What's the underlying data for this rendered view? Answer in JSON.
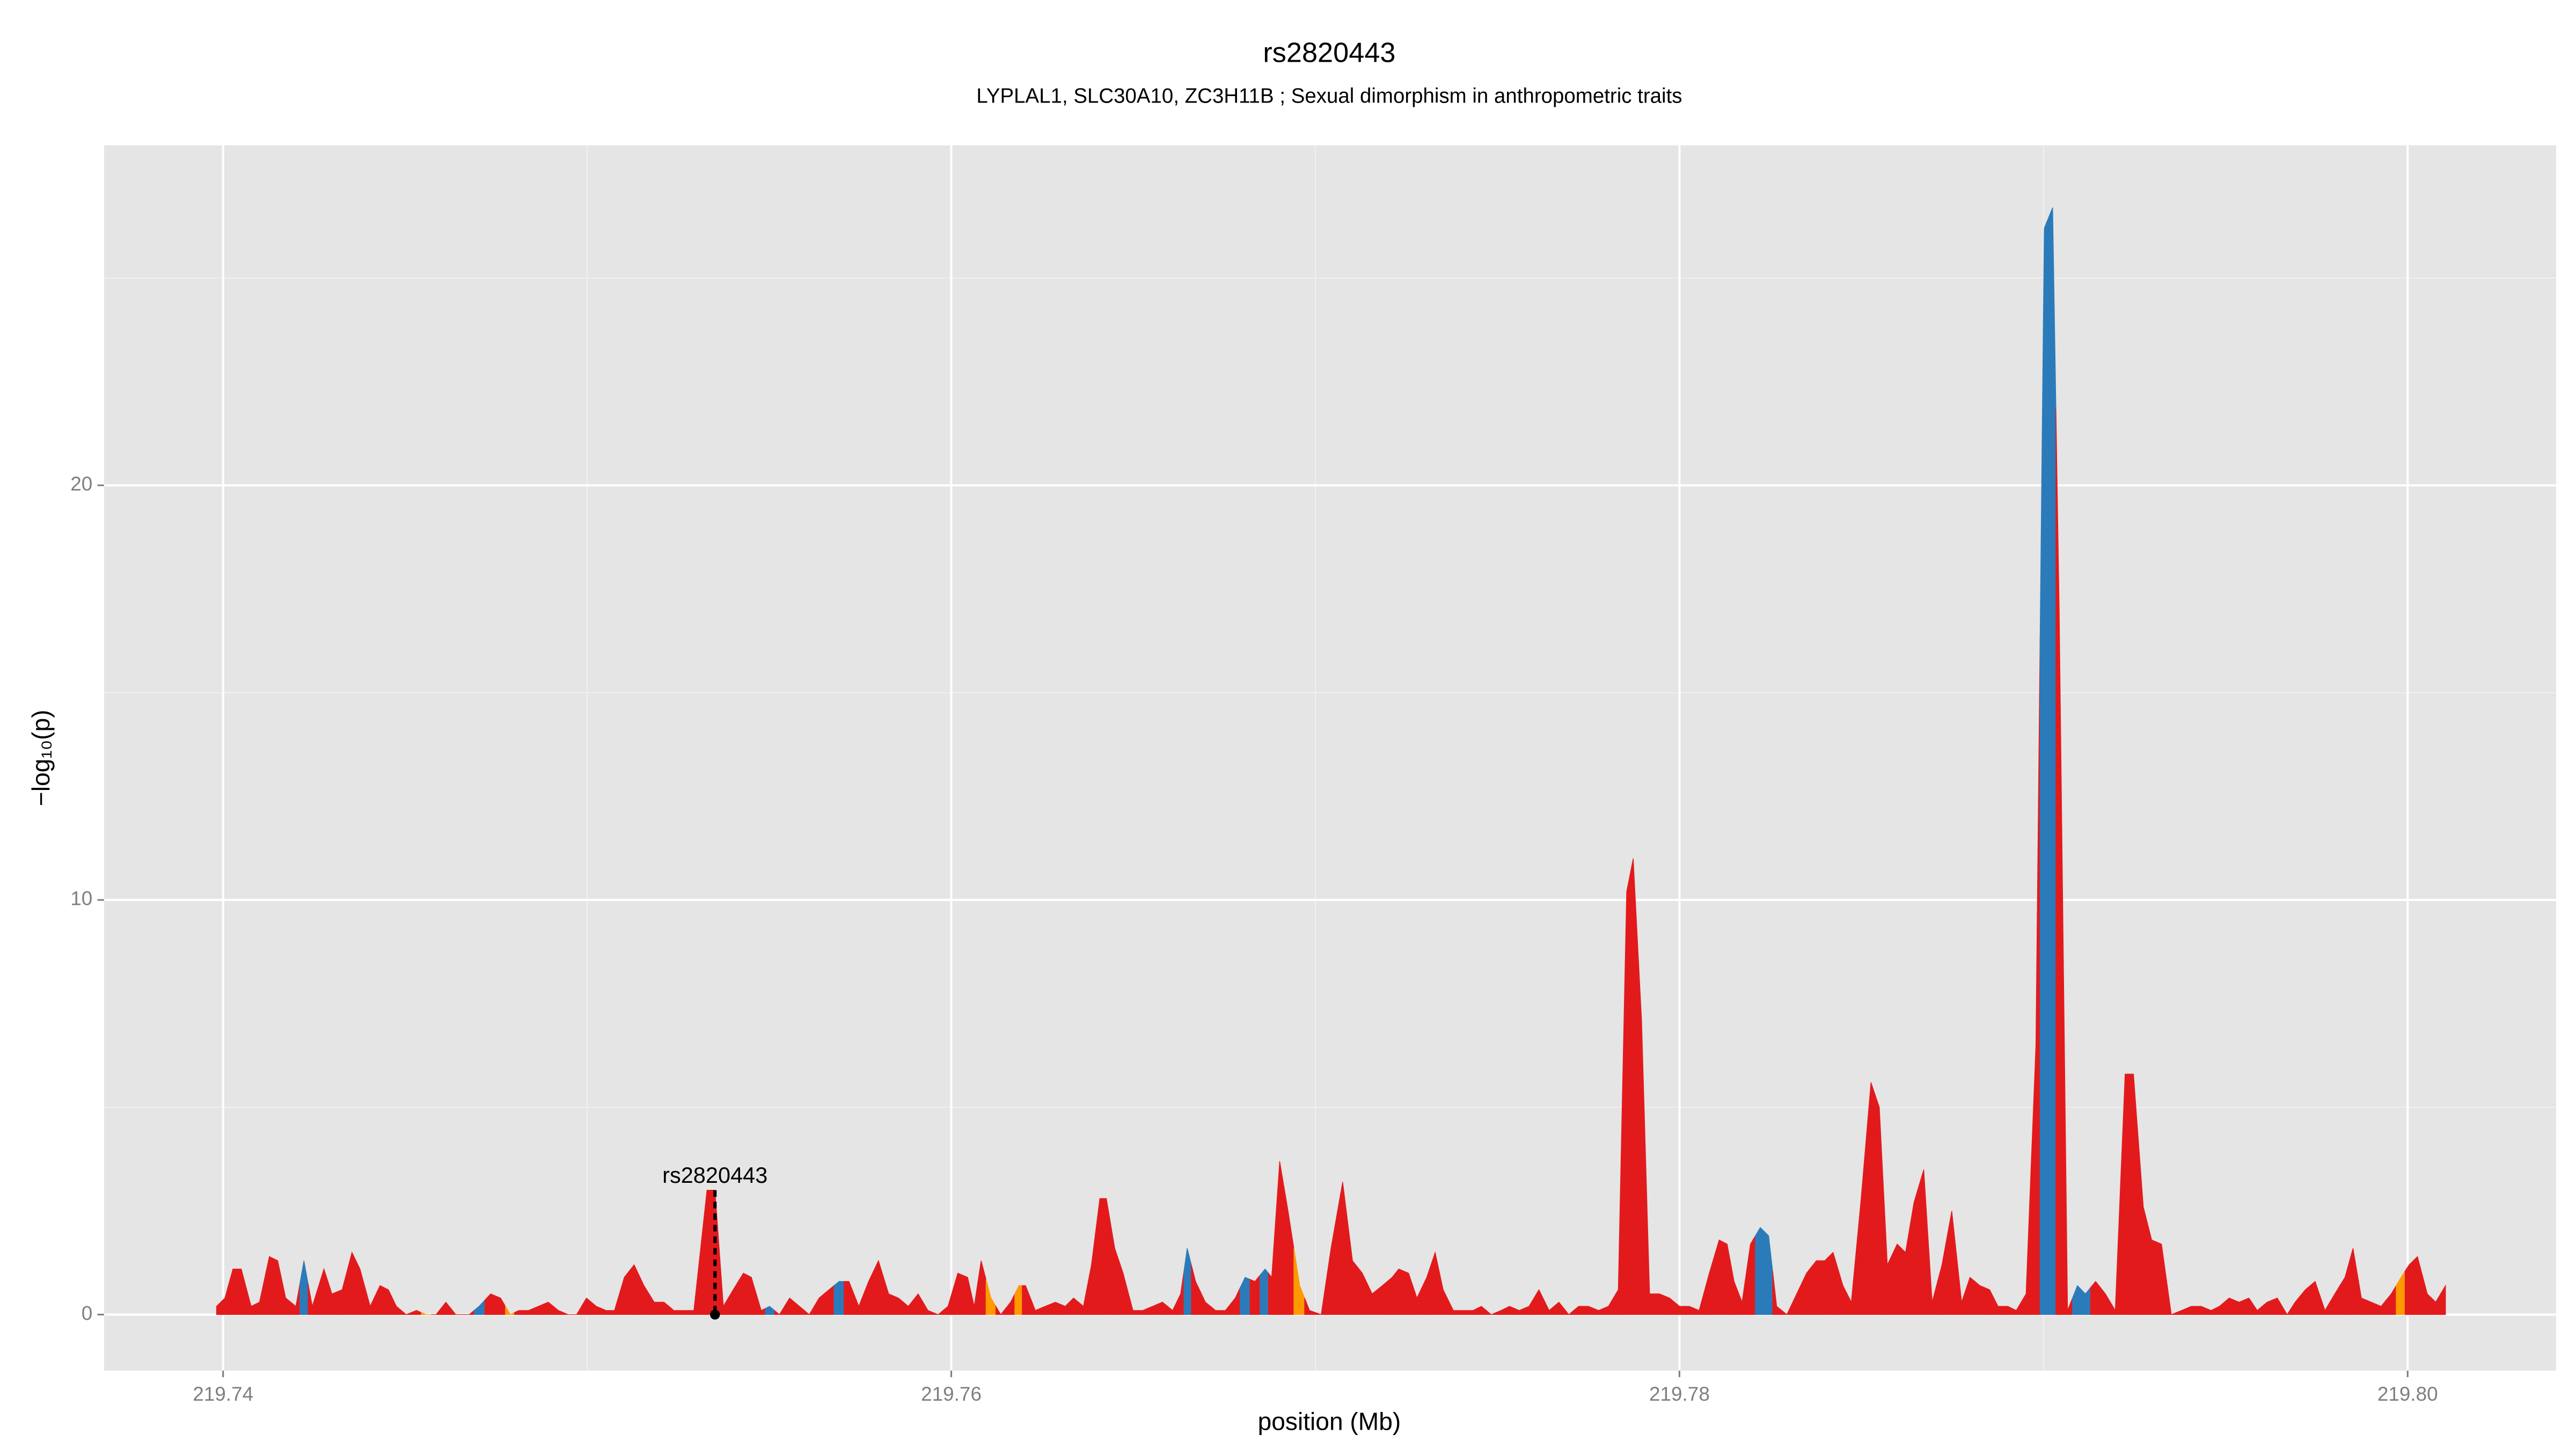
{
  "chart_data": {
    "type": "area",
    "title": "rs2820443",
    "subtitle": "LYPLAL1, SLC30A10, ZC3H11B ; Sexual dimorphism in anthropometric traits",
    "xlabel": "position (Mb)",
    "ylabel": "−log₁₀(p)",
    "xlim": [
      219.73673,
      219.80408
    ],
    "ylim": [
      -1.35,
      28.2
    ],
    "xticks": [
      219.74,
      219.76,
      219.78,
      {
        "value": 219.8,
        "label": "219.80"
      }
    ],
    "yticks": [
      0,
      10,
      20
    ],
    "minor_xticks": [
      219.75,
      219.77,
      219.79
    ],
    "minor_yticks": [
      5,
      15,
      25
    ],
    "grid": true,
    "annotation": {
      "text": "rs2820443",
      "x": 219.75351,
      "y": 3.0
    },
    "x": [
      219.73982,
      219.74005,
      219.74027,
      219.7405,
      219.74077,
      219.741,
      219.74127,
      219.7415,
      219.74172,
      219.742,
      219.74222,
      219.74245,
      219.74277,
      219.74299,
      219.74327,
      219.74354,
      219.74376,
      219.74404,
      219.74431,
      219.74454,
      219.74476,
      219.74503,
      219.74531,
      219.74558,
      219.74585,
      219.74612,
      219.74639,
      219.74676,
      219.74703,
      219.74735,
      219.74762,
      219.74789,
      219.74812,
      219.74839,
      219.74866,
      219.74893,
      219.74921,
      219.74948,
      219.74971,
      219.74998,
      219.75025,
      219.75052,
      219.75075,
      219.75102,
      219.75129,
      219.75156,
      219.75184,
      219.75211,
      219.75238,
      219.75265,
      219.75293,
      219.75329,
      219.75351,
      219.75374,
      219.75401,
      219.75429,
      219.75451,
      219.75478,
      219.75501,
      219.75528,
      219.75556,
      219.75583,
      219.7561,
      219.75637,
      219.75664,
      219.75692,
      219.75719,
      219.75746,
      219.75773,
      219.758,
      219.75828,
      219.75855,
      219.75882,
      219.75909,
      219.75936,
      219.75964,
      219.75991,
      219.76018,
      219.76045,
      219.76063,
      219.76082,
      219.76109,
      219.76136,
      219.76163,
      219.76186,
      219.76204,
      219.76231,
      219.76258,
      219.76286,
      219.76313,
      219.76336,
      219.76363,
      219.76385,
      219.76408,
      219.76426,
      219.76449,
      219.76472,
      219.76499,
      219.76526,
      219.76553,
      219.7658,
      219.76608,
      219.7663,
      219.76648,
      219.76671,
      219.76698,
      219.76726,
      219.76753,
      219.7678,
      219.76807,
      219.76834,
      219.76862,
      219.7688,
      219.76902,
      219.76925,
      219.76957,
      219.76984,
      219.77016,
      219.77043,
      219.77075,
      219.77102,
      219.77129,
      219.77156,
      219.77184,
      219.77211,
      219.77229,
      219.77256,
      219.77279,
      219.77306,
      219.77329,
      219.77351,
      219.77379,
      219.77406,
      219.77433,
      219.77456,
      219.77483,
      219.7751,
      219.77533,
      219.7756,
      219.77587,
      219.77614,
      219.77642,
      219.77669,
      219.77696,
      219.77723,
      219.7775,
      219.77778,
      219.77805,
      219.77832,
      219.77855,
      219.77873,
      219.77896,
      219.77918,
      219.77945,
      219.77973,
      219.78,
      219.78027,
      219.78054,
      219.78082,
      219.78109,
      219.78131,
      219.7815,
      219.78172,
      219.78195,
      219.78222,
      219.78245,
      219.78267,
      219.78295,
      219.78322,
      219.78349,
      219.78376,
      219.78399,
      219.78422,
      219.78449,
      219.78472,
      219.78499,
      219.78526,
      219.78549,
      219.78571,
      219.78598,
      219.78621,
      219.78644,
      219.78671,
      219.78694,
      219.78721,
      219.78748,
      219.78775,
      219.78798,
      219.78825,
      219.78852,
      219.78875,
      219.78902,
      219.78925,
      219.78952,
      219.78979,
      219.79002,
      219.79025,
      219.79043,
      219.79066,
      219.79093,
      219.79115,
      219.79143,
      219.7917,
      219.79197,
      219.79224,
      219.79247,
      219.79274,
      219.79297,
      219.79324,
      219.79351,
      219.79379,
      219.79406,
      219.79433,
      219.7946,
      219.79483,
      219.7951,
      219.79537,
      219.79564,
      219.79587,
      219.79614,
      219.79642,
      219.79669,
      219.79691,
      219.79719,
      219.79746,
      219.79773,
      219.798,
      219.79828,
      219.7985,
      219.79873,
      219.799,
      219.79927,
      219.79955,
      219.79982,
      219.80004,
      219.80027,
      219.80054,
      219.80077,
      219.80104
    ],
    "values": [
      0.2,
      0.4,
      1.1,
      1.1,
      0.2,
      0.3,
      1.4,
      1.3,
      0.4,
      0.2,
      1.3,
      0.2,
      1.1,
      0.5,
      0.6,
      1.5,
      1.1,
      0.2,
      0.7,
      0.6,
      0.2,
      0.0,
      0.1,
      0.0,
      0.0,
      0.3,
      0.0,
      0.0,
      0.2,
      0.5,
      0.4,
      0.0,
      0.1,
      0.1,
      0.2,
      0.3,
      0.1,
      0.0,
      0.0,
      0.4,
      0.2,
      0.1,
      0.1,
      0.9,
      1.2,
      0.7,
      0.3,
      0.3,
      0.1,
      0.1,
      0.1,
      3.0,
      3.0,
      0.2,
      0.6,
      1.0,
      0.9,
      0.1,
      0.2,
      0.0,
      0.4,
      0.2,
      0.0,
      0.4,
      0.6,
      0.8,
      0.8,
      0.2,
      0.8,
      1.3,
      0.5,
      0.4,
      0.2,
      0.5,
      0.1,
      0.0,
      0.2,
      1.0,
      0.9,
      0.2,
      1.3,
      0.4,
      0.0,
      0.3,
      0.7,
      0.7,
      0.1,
      0.2,
      0.3,
      0.2,
      0.4,
      0.2,
      1.2,
      2.8,
      2.8,
      1.6,
      1.0,
      0.1,
      0.1,
      0.2,
      0.3,
      0.1,
      0.5,
      1.6,
      0.8,
      0.3,
      0.1,
      0.1,
      0.4,
      0.9,
      0.8,
      1.1,
      0.9,
      3.7,
      2.5,
      0.7,
      0.1,
      0.0,
      1.6,
      3.2,
      1.3,
      1.0,
      0.5,
      0.7,
      0.9,
      1.1,
      1.0,
      0.4,
      0.9,
      1.5,
      0.6,
      0.1,
      0.1,
      0.1,
      0.2,
      0.0,
      0.1,
      0.2,
      0.1,
      0.2,
      0.6,
      0.1,
      0.3,
      0.0,
      0.2,
      0.2,
      0.1,
      0.2,
      0.6,
      10.2,
      11.0,
      7.1,
      0.5,
      0.5,
      0.4,
      0.2,
      0.2,
      0.1,
      1.0,
      1.8,
      1.7,
      0.8,
      0.3,
      1.7,
      2.1,
      1.9,
      0.2,
      0.0,
      0.5,
      1.0,
      1.3,
      1.3,
      1.5,
      0.7,
      0.3,
      2.8,
      5.6,
      5.0,
      1.2,
      1.7,
      1.5,
      2.7,
      3.5,
      0.3,
      1.2,
      2.5,
      0.3,
      0.9,
      0.7,
      0.6,
      0.2,
      0.2,
      0.1,
      0.5,
      6.5,
      26.2,
      26.7,
      17.0,
      0.1,
      0.7,
      0.5,
      0.8,
      0.5,
      0.1,
      5.8,
      5.8,
      2.6,
      1.8,
      1.7,
      0.0,
      0.1,
      0.2,
      0.2,
      0.1,
      0.2,
      0.4,
      0.3,
      0.4,
      0.1,
      0.3,
      0.4,
      0.0,
      0.3,
      0.6,
      0.8,
      0.1,
      0.5,
      0.9,
      1.6,
      0.4,
      0.3,
      0.2,
      0.5,
      0.9,
      1.2,
      1.4,
      0.5,
      0.3,
      0.7
    ],
    "colors": [
      "#e31a1c",
      "#e31a1c",
      "#e31a1c",
      "#e31a1c",
      "#e31a1c",
      "#e31a1c",
      "#e31a1c",
      "#e31a1c",
      "#e31a1c",
      "#e31a1c",
      "#2b7bba",
      "#e31a1c",
      "#e31a1c",
      "#e31a1c",
      "#e31a1c",
      "#e31a1c",
      "#e31a1c",
      "#e31a1c",
      "#e31a1c",
      "#e31a1c",
      "#e31a1c",
      "#e31a1c",
      "#e31a1c",
      "#ff9900",
      "#e31a1c",
      "#e31a1c",
      "#e31a1c",
      "#e31a1c",
      "#2b7bba",
      "#e31a1c",
      "#e31a1c",
      "#ff9900",
      "#e31a1c",
      "#e31a1c",
      "#e31a1c",
      "#e31a1c",
      "#e31a1c",
      "#e31a1c",
      "#e31a1c",
      "#e31a1c",
      "#e31a1c",
      "#e31a1c",
      "#e31a1c",
      "#e31a1c",
      "#e31a1c",
      "#e31a1c",
      "#e31a1c",
      "#e31a1c",
      "#e31a1c",
      "#e31a1c",
      "#e31a1c",
      "#e31a1c",
      "#e31a1c",
      "#e31a1c",
      "#e31a1c",
      "#e31a1c",
      "#e31a1c",
      "#e31a1c",
      "#2b7bba",
      "#e31a1c",
      "#e31a1c",
      "#e31a1c",
      "#e31a1c",
      "#e31a1c",
      "#e31a1c",
      "#2b7bba",
      "#e31a1c",
      "#e31a1c",
      "#e31a1c",
      "#e31a1c",
      "#e31a1c",
      "#e31a1c",
      "#e31a1c",
      "#e31a1c",
      "#e31a1c",
      "#e31a1c",
      "#e31a1c",
      "#e31a1c",
      "#e31a1c",
      "#e31a1c",
      "#e31a1c",
      "#ff9900",
      "#e31a1c",
      "#e31a1c",
      "#ff9900",
      "#e31a1c",
      "#e31a1c",
      "#e31a1c",
      "#e31a1c",
      "#e31a1c",
      "#e31a1c",
      "#e31a1c",
      "#e31a1c",
      "#e31a1c",
      "#e31a1c",
      "#e31a1c",
      "#e31a1c",
      "#e31a1c",
      "#e31a1c",
      "#e31a1c",
      "#e31a1c",
      "#e31a1c",
      "#e31a1c",
      "#2b7bba",
      "#e31a1c",
      "#e31a1c",
      "#e31a1c",
      "#e31a1c",
      "#e31a1c",
      "#2b7bba",
      "#e31a1c",
      "#2b7bba",
      "#e31a1c",
      "#e31a1c",
      "#e31a1c",
      "#ff9900",
      "#e31a1c",
      "#e31a1c",
      "#e31a1c",
      "#e31a1c",
      "#e31a1c",
      "#e31a1c",
      "#e31a1c",
      "#e31a1c",
      "#e31a1c",
      "#e31a1c",
      "#e31a1c",
      "#e31a1c",
      "#e31a1c",
      "#e31a1c",
      "#e31a1c",
      "#e31a1c",
      "#e31a1c",
      "#e31a1c",
      "#e31a1c",
      "#e31a1c",
      "#e31a1c",
      "#e31a1c",
      "#e31a1c",
      "#e31a1c",
      "#e31a1c",
      "#e31a1c",
      "#e31a1c",
      "#e31a1c",
      "#e31a1c",
      "#e31a1c",
      "#e31a1c",
      "#e31a1c",
      "#e31a1c",
      "#e31a1c",
      "#e31a1c",
      "#e31a1c",
      "#e31a1c",
      "#e31a1c",
      "#e31a1c",
      "#e31a1c",
      "#e31a1c",
      "#e31a1c",
      "#e31a1c",
      "#e31a1c",
      "#e31a1c",
      "#e31a1c",
      "#e31a1c",
      "#e31a1c",
      "#2b7bba",
      "#2b7bba",
      "#e31a1c",
      "#e31a1c",
      "#e31a1c",
      "#e31a1c",
      "#e31a1c",
      "#e31a1c",
      "#e31a1c",
      "#e31a1c",
      "#e31a1c",
      "#e31a1c",
      "#e31a1c",
      "#e31a1c",
      "#e31a1c",
      "#e31a1c",
      "#e31a1c",
      "#e31a1c",
      "#e31a1c",
      "#e31a1c",
      "#e31a1c",
      "#e31a1c",
      "#e31a1c",
      "#e31a1c",
      "#e31a1c",
      "#e31a1c",
      "#e31a1c",
      "#e31a1c",
      "#e31a1c",
      "#e31a1c",
      "#e31a1c",
      "#2b7bba",
      "#2b7bba",
      "#e31a1c",
      "#e31a1c",
      "#2b7bba",
      "#2b7bba",
      "#e31a1c",
      "#e31a1c",
      "#e31a1c",
      "#e31a1c",
      "#e31a1c",
      "#e31a1c",
      "#e31a1c",
      "#e31a1c",
      "#e31a1c",
      "#e31a1c",
      "#e31a1c",
      "#e31a1c",
      "#e31a1c",
      "#e31a1c",
      "#e31a1c",
      "#e31a1c",
      "#e31a1c",
      "#e31a1c",
      "#e31a1c",
      "#e31a1c",
      "#e31a1c",
      "#e31a1c",
      "#e31a1c",
      "#e31a1c",
      "#e31a1c",
      "#e31a1c",
      "#e31a1c",
      "#e31a1c",
      "#e31a1c",
      "#e31a1c",
      "#e31a1c",
      "#e31a1c",
      "#ff9900",
      "#e31a1c",
      "#e31a1c",
      "#e31a1c",
      "#e31a1c",
      "#e31a1c"
    ]
  }
}
